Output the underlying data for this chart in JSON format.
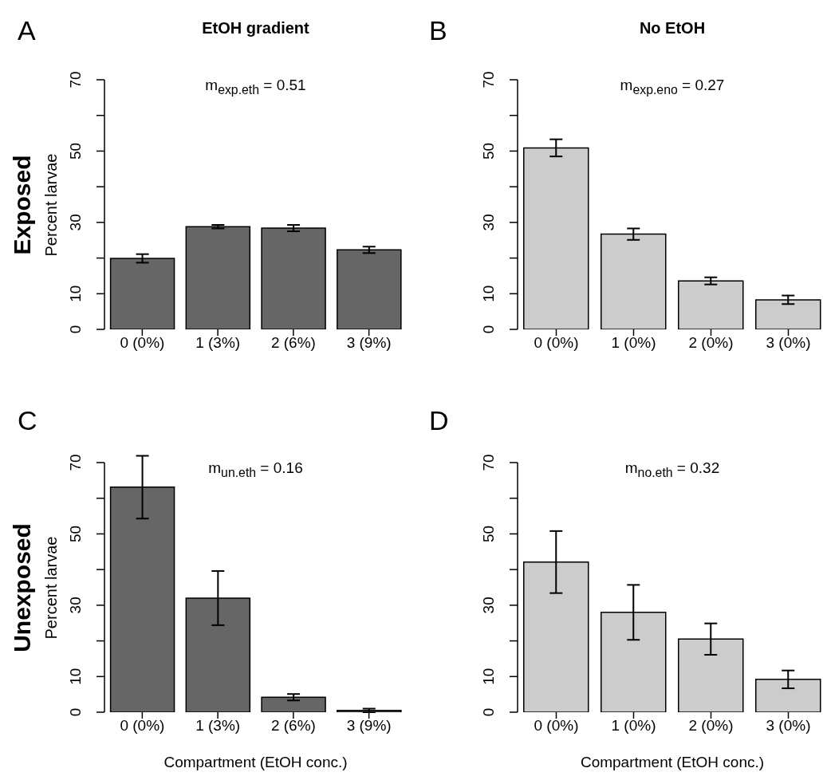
{
  "chart_data": [
    {
      "type": "bar",
      "title": "EtOH gradient",
      "ylabel": "Percent larvae",
      "categories": [
        "0 (0%)",
        "1 (3%)",
        "2 (6%)",
        "3 (9%)"
      ],
      "values": [
        19.9,
        28.8,
        28.4,
        22.3
      ],
      "errors": [
        1.2,
        0.5,
        0.9,
        0.9
      ],
      "color": "#666666",
      "ylim": [
        0,
        70
      ],
      "yticks": [
        0,
        10,
        {
          "value": 20,
          "label": null
        },
        30,
        {
          "value": 40,
          "label": null
        },
        50,
        {
          "value": 60,
          "label": null
        },
        70
      ],
      "annotations": [
        "A",
        "m$_{exp.eth}$ = 0.51",
        "Exposed"
      ]
    },
    {
      "type": "bar",
      "title": "No EtOH",
      "categories": [
        "0 (0%)",
        "1 (0%)",
        "2 (0%)",
        "3 (0%)"
      ],
      "values": [
        50.9,
        26.7,
        13.6,
        8.3
      ],
      "errors": [
        2.4,
        1.6,
        1.0,
        1.2
      ],
      "color": "#cccccc",
      "ylim": [
        0,
        70
      ],
      "yticks": [
        0,
        10,
        {
          "value": 20,
          "label": null
        },
        30,
        {
          "value": 40,
          "label": null
        },
        50,
        {
          "value": 60,
          "label": null
        },
        70
      ],
      "annotations": [
        "B",
        "m$_{exp.eno}$ = 0.27"
      ]
    },
    {
      "type": "bar",
      "xlabel": "Compartment (EtOH conc.)",
      "ylabel": "Percent larvae",
      "categories": [
        "0 (0%)",
        "1 (3%)",
        "2 (6%)",
        "3 (9%)"
      ],
      "values": [
        63.1,
        32.0,
        4.2,
        0.5
      ],
      "errors": [
        8.8,
        7.6,
        0.9,
        0.5
      ],
      "color": "#666666",
      "ylim": [
        0,
        70
      ],
      "yticks": [
        0,
        10,
        {
          "value": 20,
          "label": null
        },
        30,
        {
          "value": 40,
          "label": null
        },
        50,
        {
          "value": 60,
          "label": null
        },
        70
      ],
      "annotations": [
        "C",
        "m$_{un.eth}$ = 0.16",
        "Unexposed"
      ]
    },
    {
      "type": "bar",
      "xlabel": "Compartment (EtOH conc.)",
      "categories": [
        "0 (0%)",
        "1 (0%)",
        "2 (0%)",
        "3 (0%)"
      ],
      "values": [
        42.1,
        28.0,
        20.5,
        9.2
      ],
      "errors": [
        8.7,
        7.7,
        4.4,
        2.5
      ],
      "color": "#cccccc",
      "ylim": [
        0,
        70
      ],
      "yticks": [
        0,
        10,
        {
          "value": 20,
          "label": null
        },
        30,
        {
          "value": 40,
          "label": null
        },
        50,
        {
          "value": 60,
          "label": null
        },
        70
      ],
      "annotations": [
        "D",
        "m$_{no.eth}$ = 0.32"
      ]
    }
  ]
}
